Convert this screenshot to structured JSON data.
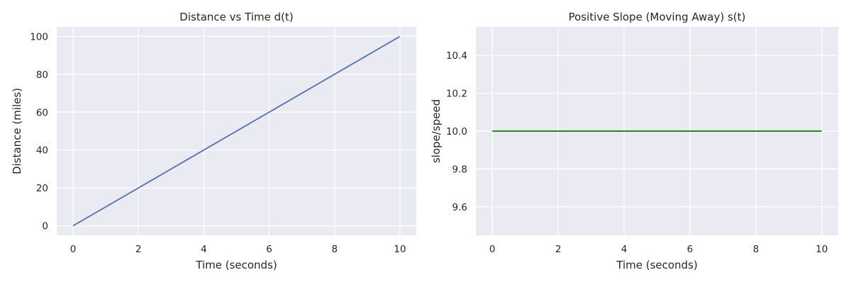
{
  "chart_data": [
    {
      "type": "line",
      "title": "Distance vs Time d(t)",
      "xlabel": "Time (seconds)",
      "ylabel": "Distance (miles)",
      "xlim": [
        -0.5,
        10.5
      ],
      "ylim": [
        -5,
        105
      ],
      "xticks": [
        0,
        2,
        4,
        6,
        8,
        10
      ],
      "yticks": [
        0,
        20,
        40,
        60,
        80,
        100
      ],
      "xtick_labels": [
        "0",
        "2",
        "4",
        "6",
        "8",
        "10"
      ],
      "ytick_labels": [
        "0",
        "20",
        "40",
        "60",
        "80",
        "100"
      ],
      "grid": true,
      "background": "#eaeaf2",
      "series": [
        {
          "color": "#4c72b0",
          "x": [
            0,
            10
          ],
          "y": [
            0,
            100
          ]
        }
      ]
    },
    {
      "type": "line",
      "title": "Positive Slope (Moving Away) s(t)",
      "xlabel": "Time (seconds)",
      "ylabel": "slope/speed",
      "xlim": [
        -0.5,
        10.5
      ],
      "ylim": [
        9.45,
        10.55
      ],
      "xticks": [
        0,
        2,
        4,
        6,
        8,
        10
      ],
      "yticks": [
        9.6,
        9.8,
        10.0,
        10.2,
        10.4
      ],
      "xtick_labels": [
        "0",
        "2",
        "4",
        "6",
        "8",
        "10"
      ],
      "ytick_labels": [
        "9.6",
        "9.8",
        "10.0",
        "10.2",
        "10.4"
      ],
      "grid": true,
      "background": "#eaeaf2",
      "series": [
        {
          "color": "#008000",
          "x": [
            0,
            10
          ],
          "y": [
            10,
            10
          ]
        }
      ]
    }
  ]
}
